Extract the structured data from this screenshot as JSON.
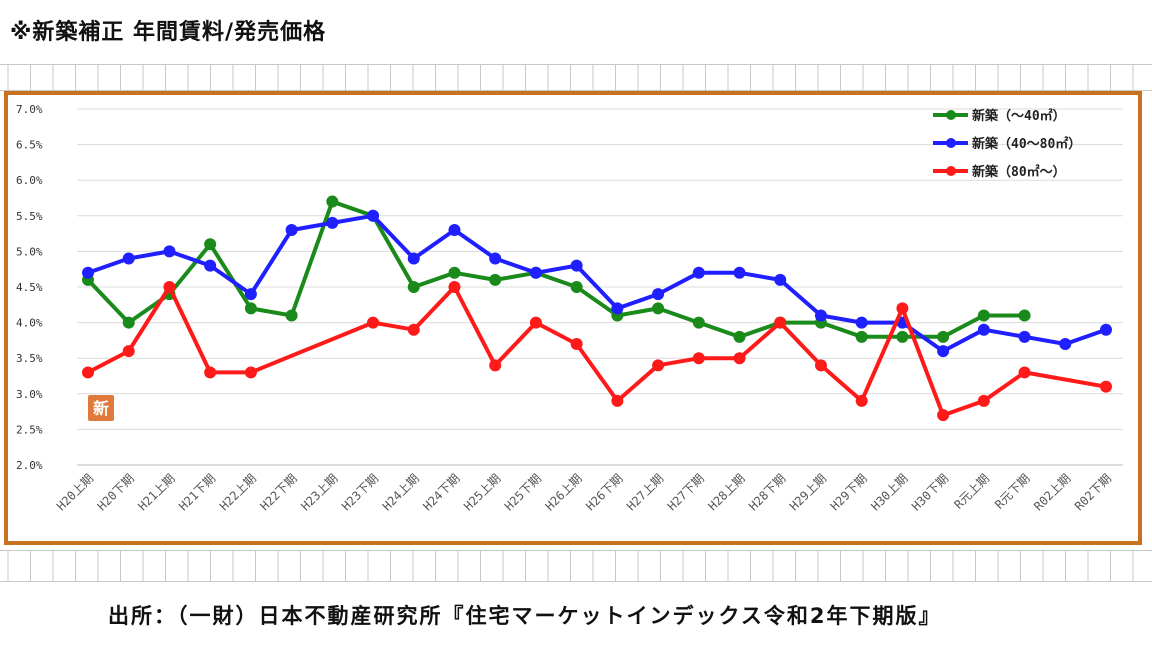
{
  "header": {
    "title": "※新築補正 年間賃料/発売価格"
  },
  "source": {
    "text": "出所：（一財）日本不動産研究所『住宅マーケットインデックス令和2年下期版』"
  },
  "badge": {
    "text": "新"
  },
  "chart_data": {
    "type": "line",
    "categories": [
      "H20上期",
      "H20下期",
      "H21上期",
      "H21下期",
      "H22上期",
      "H22下期",
      "H23上期",
      "H23下期",
      "H24上期",
      "H24下期",
      "H25上期",
      "H25下期",
      "H26上期",
      "H26下期",
      "H27上期",
      "H27下期",
      "H28上期",
      "H28下期",
      "H29上期",
      "H29下期",
      "H30上期",
      "H30下期",
      "R元上期",
      "R元下期",
      "R02上期",
      "R02下期"
    ],
    "y_ticks": [
      "7.0%",
      "6.5%",
      "6.0%",
      "5.5%",
      "5.0%",
      "4.5%",
      "4.0%",
      "3.5%",
      "3.0%",
      "2.5%",
      "2.0%"
    ],
    "ylim": [
      2.0,
      7.0
    ],
    "grid": true,
    "legend_position": "top-right",
    "series": [
      {
        "name": "新築（～40㎡）",
        "color": "#1a8a1a",
        "values": [
          4.6,
          4.0,
          4.4,
          5.1,
          4.2,
          4.1,
          5.7,
          5.5,
          4.5,
          4.7,
          4.6,
          4.7,
          4.5,
          4.1,
          4.2,
          4.0,
          3.8,
          4.0,
          4.0,
          3.8,
          3.8,
          3.8,
          4.1,
          4.1,
          null,
          null
        ]
      },
      {
        "name": "新築（40～80㎡）",
        "color": "#1f1fff",
        "values": [
          4.7,
          4.9,
          5.0,
          4.8,
          4.4,
          5.3,
          5.4,
          5.5,
          4.9,
          5.3,
          4.9,
          4.7,
          4.8,
          4.2,
          4.4,
          4.7,
          4.7,
          4.6,
          4.1,
          4.0,
          4.0,
          3.6,
          3.9,
          3.8,
          3.7,
          3.9
        ]
      },
      {
        "name": "新築（80㎡～）",
        "color": "#ff1a1a",
        "values": [
          3.3,
          3.6,
          4.5,
          3.3,
          3.3,
          null,
          null,
          4.0,
          3.9,
          4.5,
          3.4,
          4.0,
          3.7,
          2.9,
          3.4,
          3.5,
          3.5,
          4.0,
          3.4,
          2.9,
          4.2,
          2.7,
          2.9,
          3.3,
          null,
          3.1
        ]
      }
    ]
  }
}
